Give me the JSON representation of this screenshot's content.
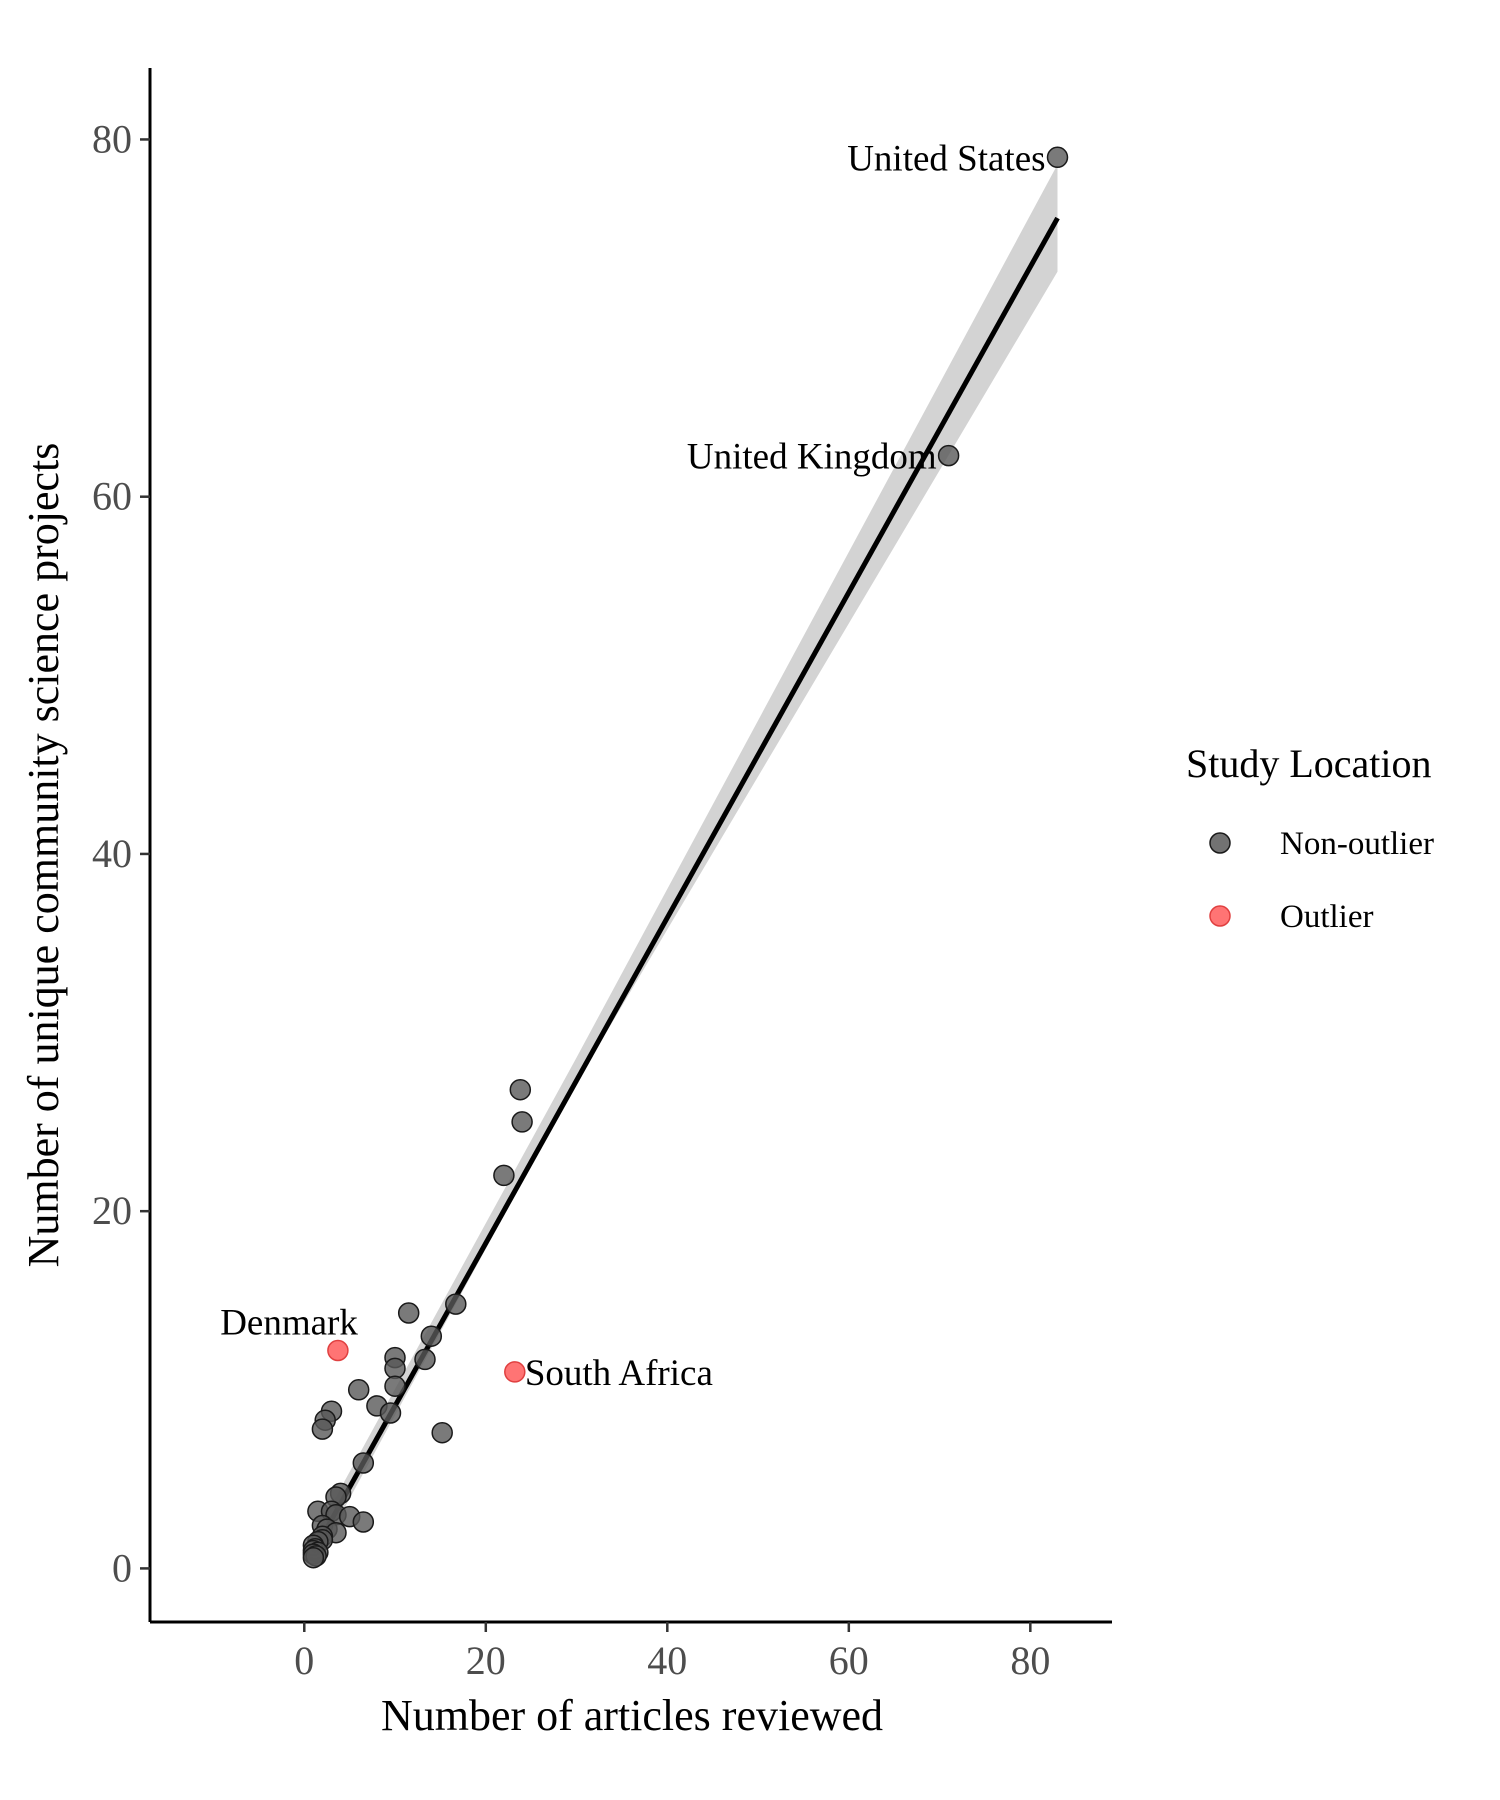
{
  "chart_data": {
    "type": "scatter",
    "xlabel": "Number of articles reviewed",
    "ylabel": "Number of unique community science projects",
    "xlim": [
      -17,
      89
    ],
    "ylim": [
      -3,
      84
    ],
    "x_ticks": [
      0,
      20,
      40,
      60,
      80
    ],
    "y_ticks": [
      0,
      20,
      40,
      60,
      80
    ],
    "grid": false,
    "legend": {
      "title": "Study Location",
      "position": "right",
      "entries": [
        {
          "label": "Non-outlier",
          "color": "#595959"
        },
        {
          "label": "Outlier",
          "color": "#ff5c5c"
        }
      ]
    },
    "trendline": {
      "type": "linear",
      "color": "#000000",
      "band_color": "#d3d3d3",
      "points": [
        [
          1,
          0.9
        ],
        [
          83,
          75.6
        ]
      ],
      "band_upper": [
        [
          1,
          1.7
        ],
        [
          30,
          28.6
        ],
        [
          83,
          78.6
        ]
      ],
      "band_lower": [
        [
          83,
          72.6
        ],
        [
          30,
          27.2
        ],
        [
          1,
          0.2
        ]
      ]
    },
    "series": [
      {
        "name": "Non-outlier",
        "color": "#595959",
        "points": [
          [
            83,
            79
          ],
          [
            71,
            62.3
          ],
          [
            23.8,
            26.8
          ],
          [
            24,
            25
          ],
          [
            22,
            22
          ],
          [
            16.7,
            14.8
          ],
          [
            11.5,
            14.3
          ],
          [
            14,
            13
          ],
          [
            10,
            11.8
          ],
          [
            13.3,
            11.7
          ],
          [
            10,
            11.2
          ],
          [
            10,
            10.2
          ],
          [
            6,
            10
          ],
          [
            8,
            9.1
          ],
          [
            9.5,
            8.7
          ],
          [
            3,
            8.8
          ],
          [
            2.3,
            8.3
          ],
          [
            2,
            7.8
          ],
          [
            15.2,
            7.6
          ],
          [
            6.5,
            5.9
          ],
          [
            4,
            4.2
          ],
          [
            3.5,
            4
          ],
          [
            1.5,
            3.2
          ],
          [
            3,
            3.2
          ],
          [
            3.5,
            3
          ],
          [
            5,
            2.9
          ],
          [
            6.5,
            2.6
          ],
          [
            2,
            2.4
          ],
          [
            2.5,
            2.2
          ],
          [
            3.5,
            2.0
          ],
          [
            2,
            1.8
          ],
          [
            2,
            1.6
          ],
          [
            1.5,
            1.5
          ],
          [
            1,
            1.3
          ],
          [
            1.2,
            1.1
          ],
          [
            1,
            1.0
          ],
          [
            1.5,
            0.9
          ],
          [
            1,
            0.8
          ],
          [
            1.3,
            0.7
          ],
          [
            1,
            0.6
          ]
        ]
      },
      {
        "name": "Outlier",
        "color": "#ff5c5c",
        "points": [
          [
            3.7,
            12.2
          ],
          [
            23.2,
            11.0
          ]
        ]
      }
    ],
    "annotations": [
      {
        "text": "United States",
        "x": 83,
        "y": 79,
        "anchor": "left"
      },
      {
        "text": "United Kingdom",
        "x": 71,
        "y": 62.3,
        "anchor": "left"
      },
      {
        "text": "Denmark",
        "x": 3.7,
        "y": 12.2,
        "anchor": "above-left"
      },
      {
        "text": "South Africa",
        "x": 23.2,
        "y": 11.0,
        "anchor": "right"
      }
    ]
  }
}
